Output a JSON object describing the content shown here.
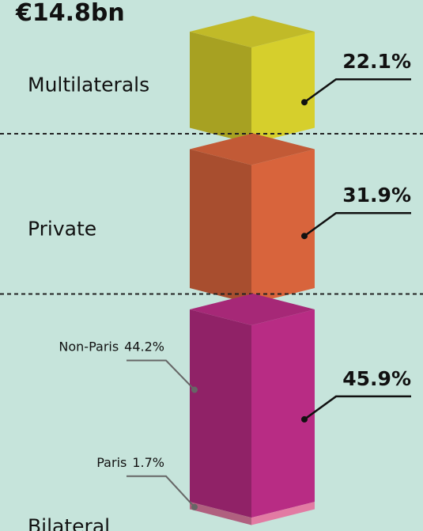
{
  "chart_data": {
    "type": "stacked-cubes",
    "title": "€14.8bn",
    "segments": [
      {
        "name": "Multilaterals",
        "value": 22.1,
        "value_label": "22.1%",
        "color": "#d6cf2c"
      },
      {
        "name": "Private",
        "value": 31.9,
        "value_label": "31.9%",
        "color": "#d8643c"
      },
      {
        "name": "Bilateral",
        "value": 45.9,
        "value_label": "45.9%",
        "color": "#b82c84",
        "parts": [
          {
            "name": "Non-Paris",
            "value": 44.2,
            "value_label": "44.2%",
            "color": "#b82c84"
          },
          {
            "name": "Paris",
            "value": 1.7,
            "value_label": "1.7%",
            "color": "#e27ba3"
          }
        ]
      }
    ]
  }
}
